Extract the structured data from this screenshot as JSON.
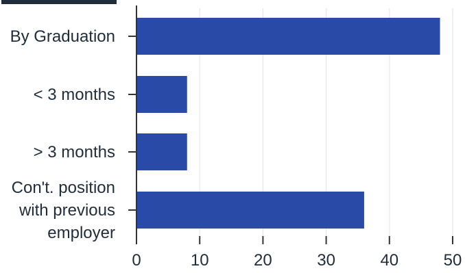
{
  "chart_data": {
    "type": "bar",
    "orientation": "horizontal",
    "title_fragment": "...",
    "categories": [
      [
        "By Graduation"
      ],
      [
        "< 3 months"
      ],
      [
        "> 3 months"
      ],
      [
        "Con't. position",
        "with previous",
        "employer"
      ]
    ],
    "values": [
      48,
      8,
      8,
      36
    ],
    "xlim": [
      0,
      50
    ],
    "xticks": [
      "0",
      "10",
      "20",
      "30",
      "40",
      "50"
    ],
    "grid": true,
    "bar_color": "#2a4aa8"
  }
}
